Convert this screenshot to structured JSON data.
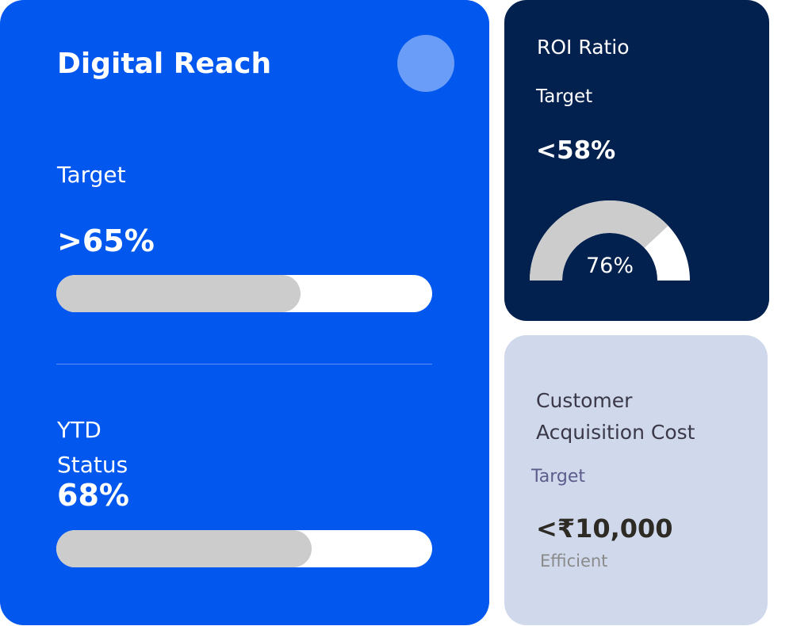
{
  "digital_reach": {
    "title": "Digital Reach",
    "target_label": "Target",
    "target_value": ">65%",
    "target_progress_percent": 65,
    "ytd_label": "YTD",
    "status_label": "Status",
    "status_value": "68%",
    "status_progress_percent": 68
  },
  "roi": {
    "title": "ROI Ratio",
    "target_label": "Target",
    "target_value": "<58%",
    "gauge_value": "76%",
    "gauge_percent": 76
  },
  "cac": {
    "title_line1": "Customer",
    "title_line2": "Acquisition Cost",
    "target_label": "Target",
    "target_value": "<₹10,000",
    "status": "Efficient"
  },
  "colors": {
    "primary": "#0157EE",
    "dark": "#03214F",
    "light": "#CFD9EB",
    "track": "#CCCCCC",
    "accent_circle": "#6A9DF8"
  }
}
